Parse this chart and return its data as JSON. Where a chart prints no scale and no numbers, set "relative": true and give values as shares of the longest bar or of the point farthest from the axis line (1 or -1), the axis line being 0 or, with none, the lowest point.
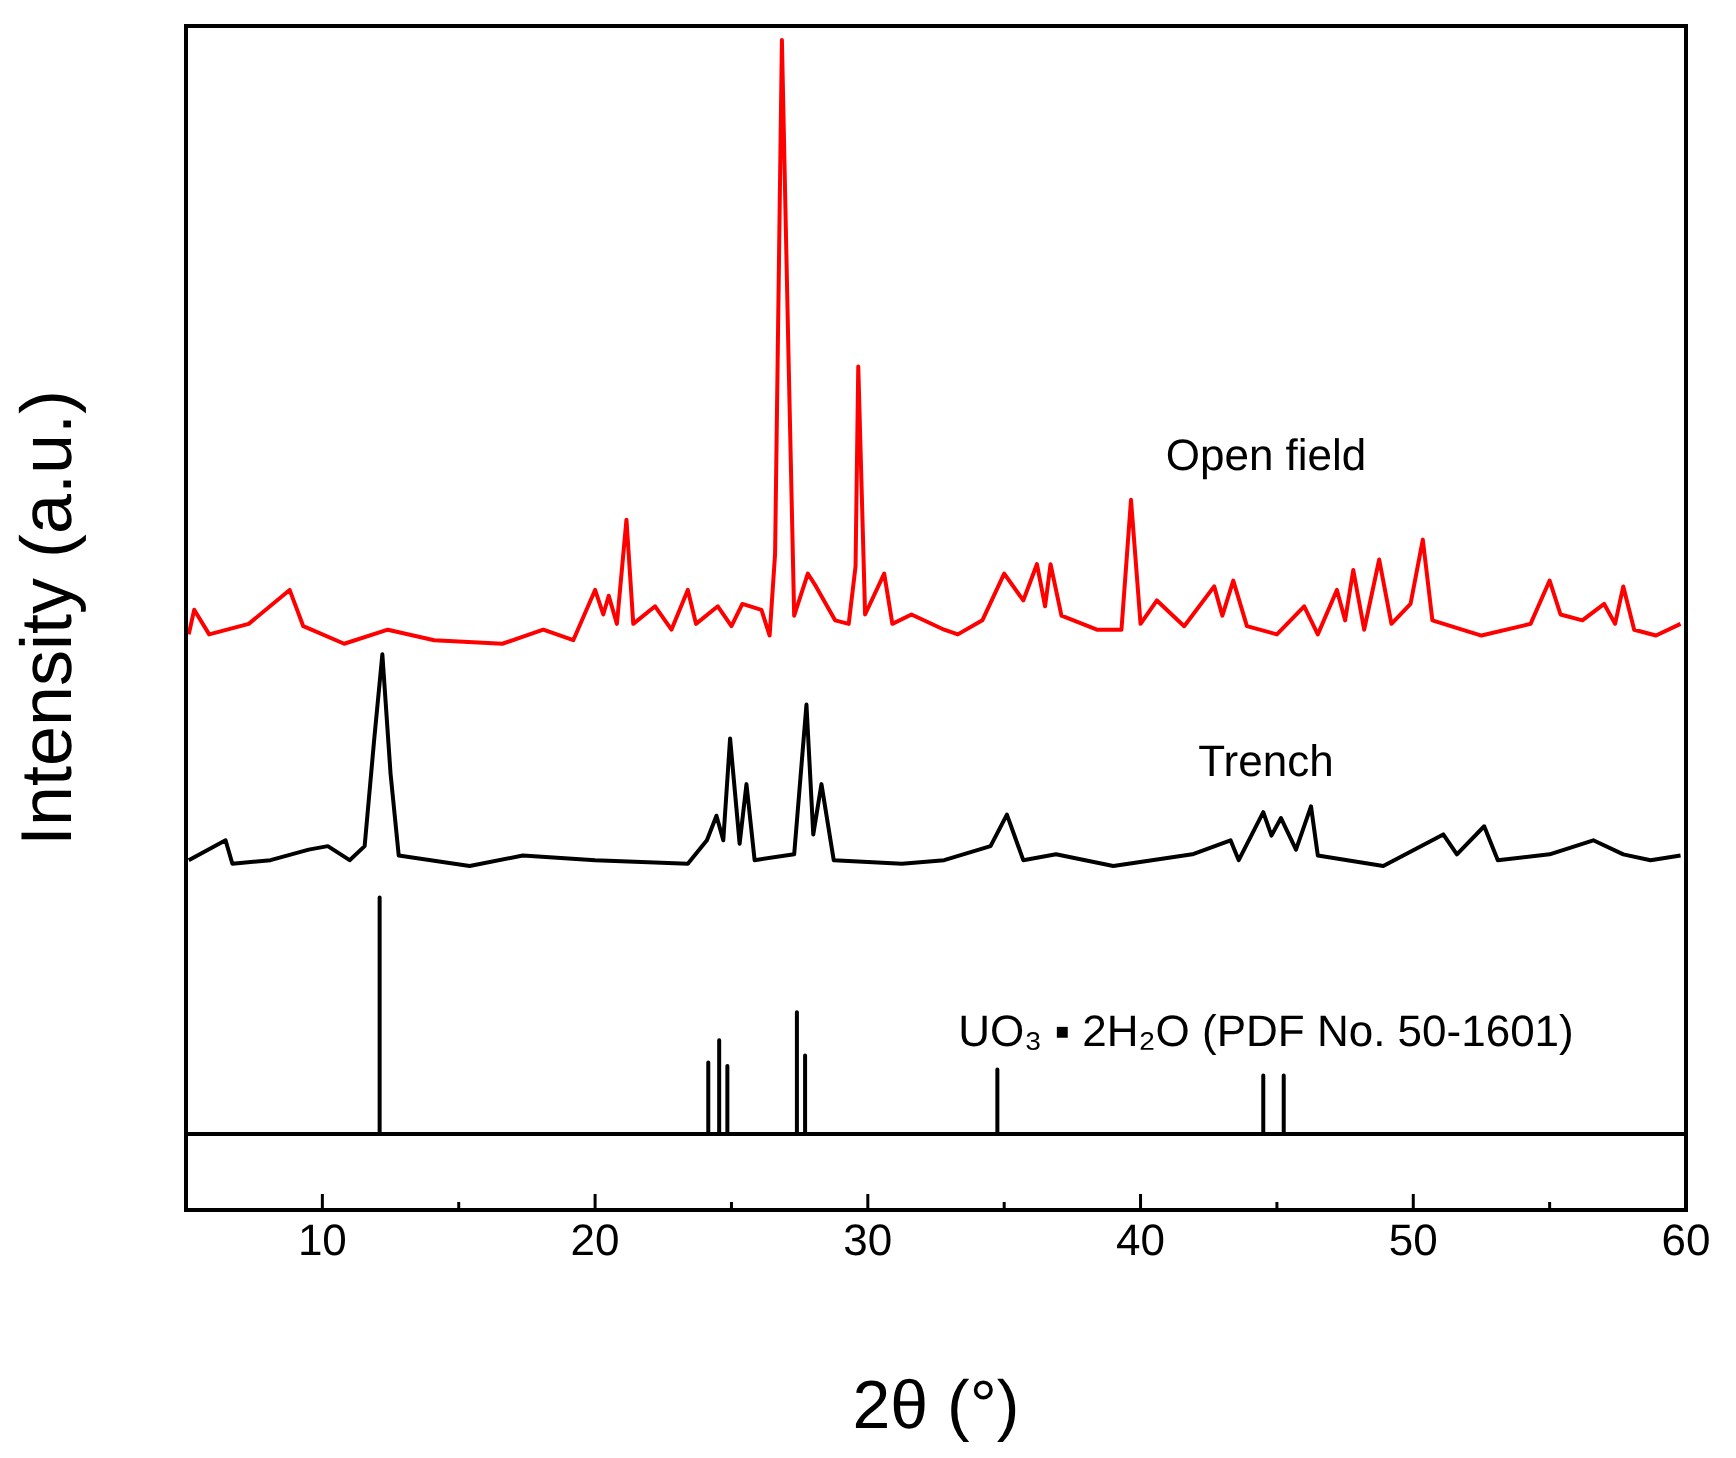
{
  "chart_data": {
    "type": "line",
    "relative": true,
    "xlabel": "2θ (°)",
    "ylabel": "Intensity (a.u.)",
    "xlim": [
      5,
      60
    ],
    "xticks": [
      {
        "value": 5,
        "label": null
      },
      10,
      {
        "value": 15,
        "label": null
      },
      20,
      {
        "value": 25,
        "label": null
      },
      30,
      {
        "value": 35,
        "label": null
      },
      40,
      {
        "value": 45,
        "label": null
      },
      50,
      {
        "value": 55,
        "label": null
      },
      60
    ],
    "legend": false,
    "grid": false,
    "marker": "none",
    "line_style": "solid",
    "series": [
      {
        "name": "Open field",
        "color": "#ff0000",
        "x": [
          5.1,
          5.3,
          5.85,
          7.3,
          8.8,
          9.3,
          10.8,
          12.4,
          14.1,
          16.6,
          18.1,
          19.2,
          20.0,
          20.3,
          20.5,
          20.8,
          21.15,
          21.4,
          22.2,
          22.8,
          23.4,
          23.7,
          24.5,
          25.0,
          25.4,
          26.1,
          26.4,
          26.6,
          26.85,
          27.1,
          27.3,
          27.8,
          28.1,
          28.8,
          29.3,
          29.55,
          29.65,
          29.9,
          30.6,
          30.9,
          31.6,
          32.8,
          33.3,
          34.2,
          35.0,
          35.7,
          36.2,
          36.5,
          36.7,
          37.1,
          38.4,
          39.3,
          39.65,
          40.0,
          40.6,
          41.6,
          42.7,
          43.0,
          43.4,
          43.9,
          45.0,
          46.0,
          46.5,
          47.2,
          47.5,
          47.8,
          48.2,
          48.75,
          49.2,
          49.9,
          50.35,
          50.7,
          52.5,
          54.3,
          55.0,
          55.4,
          56.2,
          57.0,
          57.4,
          57.7,
          58.1,
          58.9,
          59.8
        ],
        "values": [
          0.492,
          0.513,
          0.492,
          0.501,
          0.53,
          0.499,
          0.484,
          0.496,
          0.487,
          0.484,
          0.496,
          0.487,
          0.53,
          0.509,
          0.525,
          0.501,
          0.59,
          0.501,
          0.516,
          0.496,
          0.53,
          0.501,
          0.516,
          0.499,
          0.518,
          0.513,
          0.491,
          0.561,
          1.0,
          0.721,
          0.508,
          0.544,
          0.533,
          0.504,
          0.501,
          0.55,
          0.721,
          0.509,
          0.544,
          0.501,
          0.509,
          0.496,
          0.492,
          0.504,
          0.544,
          0.521,
          0.552,
          0.516,
          0.552,
          0.508,
          0.496,
          0.496,
          0.607,
          0.501,
          0.521,
          0.499,
          0.533,
          0.508,
          0.538,
          0.499,
          0.492,
          0.516,
          0.492,
          0.53,
          0.504,
          0.547,
          0.496,
          0.556,
          0.501,
          0.518,
          0.573,
          0.504,
          0.491,
          0.501,
          0.538,
          0.509,
          0.504,
          0.518,
          0.501,
          0.533,
          0.496,
          0.491,
          0.501
        ]
      },
      {
        "name": "Trench",
        "color": "#000000",
        "x": [
          5.1,
          6.45,
          6.7,
          8.1,
          9.5,
          10.2,
          11.0,
          11.55,
          11.9,
          12.2,
          12.5,
          12.8,
          15.4,
          17.35,
          20.0,
          23.4,
          24.1,
          24.45,
          24.7,
          24.95,
          25.3,
          25.55,
          25.85,
          27.3,
          27.75,
          28.0,
          28.3,
          28.75,
          31.25,
          32.8,
          34.5,
          35.1,
          35.7,
          36.9,
          39.0,
          41.9,
          43.3,
          43.6,
          44.5,
          44.8,
          45.15,
          45.7,
          46.25,
          46.5,
          48.9,
          51.1,
          51.6,
          52.6,
          53.1,
          55.0,
          56.6,
          57.7,
          58.7,
          59.8
        ],
        "values": [
          0.299,
          0.316,
          0.296,
          0.299,
          0.308,
          0.311,
          0.299,
          0.311,
          0.402,
          0.475,
          0.373,
          0.303,
          0.294,
          0.303,
          0.299,
          0.296,
          0.316,
          0.337,
          0.316,
          0.403,
          0.313,
          0.364,
          0.299,
          0.304,
          0.432,
          0.321,
          0.364,
          0.299,
          0.296,
          0.299,
          0.311,
          0.338,
          0.299,
          0.304,
          0.294,
          0.304,
          0.316,
          0.299,
          0.34,
          0.32,
          0.335,
          0.308,
          0.345,
          0.303,
          0.294,
          0.321,
          0.304,
          0.328,
          0.299,
          0.304,
          0.316,
          0.304,
          0.299,
          0.303
        ]
      },
      {
        "name": "UO₃ ▪ 2H₂O (PDF No. 50-1601)",
        "color": "#000000",
        "x": [
          5,
          12.1,
          12.1,
          12.1,
          24.15,
          24.15,
          24.15,
          24.55,
          24.55,
          24.55,
          24.85,
          24.85,
          24.85,
          27.4,
          27.4,
          27.4,
          27.7,
          27.7,
          27.7,
          34.75,
          34.75,
          34.75,
          44.5,
          44.5,
          44.5,
          45.25,
          45.25,
          45.25,
          60
        ],
        "values": [
          0.065,
          0.065,
          0.267,
          0.065,
          0.065,
          0.126,
          0.065,
          0.065,
          0.145,
          0.065,
          0.065,
          0.123,
          0.065,
          0.065,
          0.169,
          0.065,
          0.065,
          0.132,
          0.065,
          0.065,
          0.12,
          0.065,
          0.065,
          0.115,
          0.065,
          0.065,
          0.115,
          0.065,
          0.065
        ]
      }
    ]
  }
}
